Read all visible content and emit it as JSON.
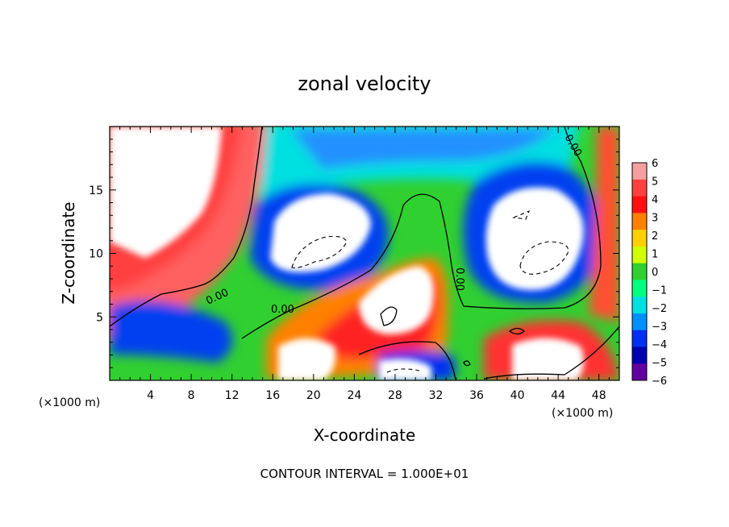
{
  "chart_data": {
    "type": "heatmap",
    "title": "zonal velocity",
    "xlabel": "X-coordinate",
    "ylabel": "Z-coordinate",
    "x_unit_left": "(×1000 m)",
    "x_unit_right": "(×1000 m)",
    "xlim": [
      0,
      50
    ],
    "ylim": [
      0,
      20
    ],
    "x_ticks": [
      4,
      8,
      12,
      16,
      20,
      24,
      28,
      32,
      36,
      40,
      44,
      48
    ],
    "y_ticks": [
      5,
      10,
      15
    ],
    "colorbar": {
      "levels": [
        6,
        5,
        4,
        3,
        2,
        1,
        0,
        -1,
        -2,
        -3,
        -4,
        -5,
        -6
      ],
      "labels": [
        "6",
        "5",
        "4",
        "3",
        "2",
        "1",
        "0",
        "−1",
        "−2",
        "−3",
        "−4",
        "−5",
        "−6"
      ],
      "colors": [
        "#f4a0a0",
        "#ff4040",
        "#ff1010",
        "#ff8000",
        "#ffd000",
        "#d0ff00",
        "#30d030",
        "#00ff80",
        "#00e0e0",
        "#0090ff",
        "#0030f0",
        "#0000b0",
        "#6000a0"
      ]
    },
    "contour_labels": [
      "0.00",
      "0.00",
      "0.00",
      "0.00"
    ],
    "footer": "CONTOUR INTERVAL = 1.000E+01"
  }
}
